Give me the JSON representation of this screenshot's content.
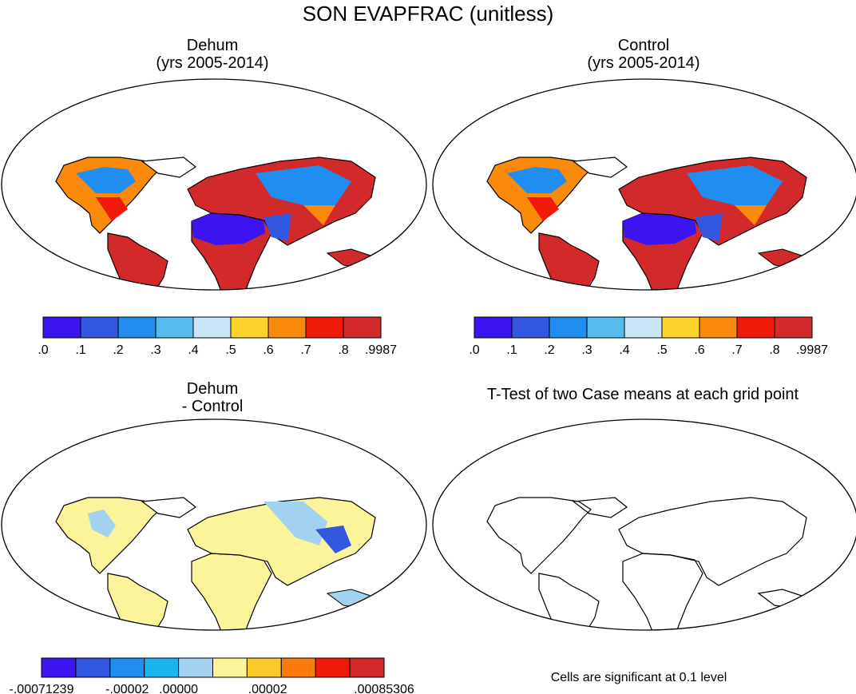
{
  "page_title": "SON EVAPFRAC (unitless)",
  "panels": [
    {
      "title": "Dehum",
      "subtitle": "(yrs 2005-2014)"
    },
    {
      "title": "Control",
      "subtitle": "(yrs 2005-2014)"
    },
    {
      "title": "Dehum",
      "subtitle": "- Control"
    },
    {
      "title": "T-Test of two Case means at each grid point"
    }
  ],
  "colorbars": {
    "absolute": {
      "colors": [
        "#3c14f0",
        "#3358e0",
        "#1f8ef0",
        "#55bdee",
        "#c8e6f8",
        "#fcd32a",
        "#fb8a0a",
        "#f01a0a",
        "#d22a2a"
      ],
      "labels": [
        ".0",
        ".1",
        ".2",
        ".3",
        ".4",
        ".5",
        ".6",
        ".7",
        ".8",
        ".9987"
      ]
    },
    "difference": {
      "colors": [
        "#3c14f0",
        "#3358e0",
        "#1f8ef0",
        "#1ab5f0",
        "#a2d2ef",
        "#fbf49a",
        "#fbc92a",
        "#fb7a0a",
        "#f01a0a",
        "#d22a2a"
      ],
      "labels": [
        "-.00071239",
        "-.00002",
        ".00000",
        ".00002",
        ".00085306"
      ]
    }
  },
  "note": "Cells are significant at 0.1 level",
  "map_colors": {
    "warm_red": "#d22a2a",
    "orange": "#fb8a0a",
    "yellow": "#fcd32a",
    "light_blue": "#c8e6f8",
    "blue": "#1f8ef0",
    "deep_blue": "#3c14f0",
    "pale_yellow": "#fbf49a"
  }
}
